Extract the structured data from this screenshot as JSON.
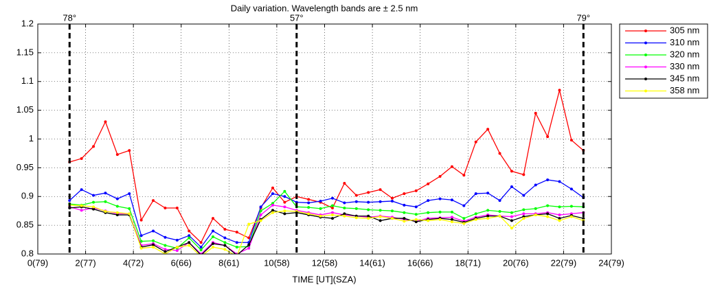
{
  "chart_data": {
    "type": "line",
    "title": "Daily variation. Wavelength bands are ± 2.5 nm",
    "x_label": "TIME [UT](SZA)",
    "x": [
      1.33,
      1.83,
      2.33,
      2.83,
      3.33,
      3.83,
      4.33,
      4.83,
      5.33,
      5.83,
      6.33,
      6.83,
      7.33,
      7.83,
      8.33,
      8.83,
      9.33,
      9.83,
      10.33,
      10.83,
      11.33,
      11.83,
      12.33,
      12.83,
      13.33,
      13.83,
      14.33,
      14.83,
      15.33,
      15.83,
      16.33,
      16.83,
      17.33,
      17.83,
      18.33,
      18.83,
      19.33,
      19.83,
      20.33,
      20.83,
      21.33,
      21.83,
      22.33,
      22.83
    ],
    "series": [
      {
        "name": "305 nm",
        "color": "#ff0000",
        "values": [
          0.96,
          0.966,
          0.987,
          1.03,
          0.973,
          0.98,
          0.859,
          0.893,
          0.88,
          0.88,
          0.84,
          0.82,
          0.862,
          0.843,
          0.838,
          0.828,
          0.88,
          0.915,
          0.89,
          0.9,
          0.895,
          0.89,
          0.88,
          0.923,
          0.902,
          0.907,
          0.912,
          0.897,
          0.905,
          0.91,
          0.922,
          0.935,
          0.952,
          0.937,
          0.995,
          1.017,
          0.975,
          0.944,
          0.938,
          1.045,
          1.004,
          1.085,
          0.998,
          0.98
        ]
      },
      {
        "name": "310 nm",
        "color": "#0000ff",
        "values": [
          0.893,
          0.912,
          0.902,
          0.906,
          0.896,
          0.905,
          0.832,
          0.84,
          0.829,
          0.824,
          0.832,
          0.812,
          0.84,
          0.828,
          0.82,
          0.82,
          0.882,
          0.905,
          0.9,
          0.89,
          0.889,
          0.892,
          0.897,
          0.889,
          0.891,
          0.89,
          0.891,
          0.892,
          0.885,
          0.882,
          0.893,
          0.896,
          0.894,
          0.884,
          0.905,
          0.906,
          0.893,
          0.917,
          0.902,
          0.92,
          0.929,
          0.926,
          0.913,
          0.898
        ]
      },
      {
        "name": "320 nm",
        "color": "#00ff00",
        "values": [
          0.887,
          0.885,
          0.89,
          0.891,
          0.883,
          0.879,
          0.822,
          0.823,
          0.815,
          0.81,
          0.828,
          0.807,
          0.83,
          0.82,
          0.812,
          0.813,
          0.875,
          0.888,
          0.909,
          0.882,
          0.881,
          0.879,
          0.884,
          0.88,
          0.879,
          0.877,
          0.876,
          0.875,
          0.872,
          0.869,
          0.872,
          0.873,
          0.873,
          0.862,
          0.87,
          0.876,
          0.874,
          0.872,
          0.877,
          0.879,
          0.884,
          0.882,
          0.883,
          0.882
        ]
      },
      {
        "name": "330 nm",
        "color": "#ff00ff",
        "values": [
          0.882,
          0.876,
          0.88,
          0.875,
          0.87,
          0.87,
          0.815,
          0.818,
          0.808,
          0.806,
          0.82,
          0.8,
          0.82,
          0.815,
          0.8,
          0.81,
          0.868,
          0.885,
          0.882,
          0.876,
          0.872,
          0.868,
          0.872,
          0.868,
          0.866,
          0.864,
          0.866,
          0.864,
          0.86,
          0.857,
          0.862,
          0.863,
          0.864,
          0.857,
          0.864,
          0.868,
          0.866,
          0.865,
          0.87,
          0.87,
          0.872,
          0.868,
          0.87,
          0.872
        ]
      },
      {
        "name": "345 nm",
        "color": "#000000",
        "values": [
          0.88,
          0.882,
          0.878,
          0.872,
          0.868,
          0.868,
          0.812,
          0.816,
          0.804,
          0.812,
          0.82,
          0.798,
          0.818,
          0.815,
          0.798,
          0.816,
          0.86,
          0.876,
          0.87,
          0.872,
          0.868,
          0.864,
          0.862,
          0.87,
          0.866,
          0.866,
          0.858,
          0.862,
          0.862,
          0.856,
          0.86,
          0.862,
          0.86,
          0.855,
          0.862,
          0.866,
          0.866,
          0.858,
          0.865,
          0.868,
          0.87,
          0.862,
          0.867,
          0.862
        ]
      },
      {
        "name": "358 nm",
        "color": "#ffff00",
        "values": [
          0.885,
          0.884,
          0.882,
          0.874,
          0.872,
          0.87,
          0.81,
          0.812,
          0.8,
          0.812,
          0.815,
          0.796,
          0.812,
          0.808,
          0.796,
          0.852,
          0.858,
          0.872,
          0.875,
          0.874,
          0.87,
          0.866,
          0.868,
          0.866,
          0.863,
          0.862,
          0.865,
          0.862,
          0.857,
          0.86,
          0.858,
          0.86,
          0.856,
          0.853,
          0.86,
          0.862,
          0.866,
          0.845,
          0.862,
          0.868,
          0.865,
          0.858,
          0.865,
          0.858
        ]
      }
    ],
    "markers": [
      {
        "x": 1.33,
        "label": "78°"
      },
      {
        "x": 10.83,
        "label": "57°"
      },
      {
        "x": 22.83,
        "label": "79°"
      }
    ],
    "xlim": [
      0,
      24
    ],
    "xticks": [
      {
        "value": 0,
        "label": "0(79)"
      },
      {
        "value": 2,
        "label": "2(77)"
      },
      {
        "value": 4,
        "label": "4(72)"
      },
      {
        "value": 6,
        "label": "6(66)"
      },
      {
        "value": 8,
        "label": "8(61)"
      },
      {
        "value": 10,
        "label": "10(58)"
      },
      {
        "value": 12,
        "label": "12(58)"
      },
      {
        "value": 14,
        "label": "14(61)"
      },
      {
        "value": 16,
        "label": "16(66)"
      },
      {
        "value": 18,
        "label": "18(71)"
      },
      {
        "value": 20,
        "label": "20(76)"
      },
      {
        "value": 22,
        "label": "22(79)"
      },
      {
        "value": 24,
        "label": "24(79)"
      }
    ],
    "ylim": [
      0.8,
      1.2
    ],
    "yticks": [
      0.8,
      0.85,
      0.9,
      0.95,
      1,
      1.05,
      1.1,
      1.15,
      1.2
    ],
    "grid": true,
    "legend": "outside-right"
  }
}
